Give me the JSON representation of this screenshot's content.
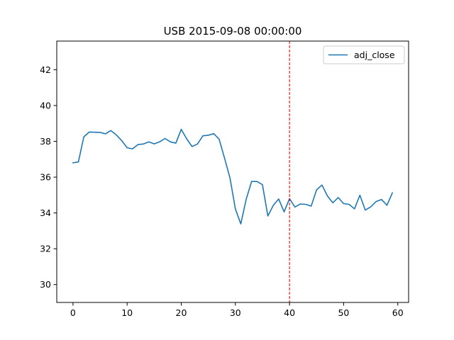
{
  "chart_data": {
    "type": "line",
    "title": "USB 2015-09-08 00:00:00",
    "xlabel": "",
    "ylabel": "",
    "xlim": [
      -3,
      62
    ],
    "ylim": [
      29.0,
      43.6
    ],
    "xticks": [
      0,
      10,
      20,
      30,
      40,
      50,
      60
    ],
    "yticks": [
      30,
      32,
      34,
      36,
      38,
      40,
      42
    ],
    "grid": false,
    "legend": {
      "position": "top-right"
    },
    "series": [
      {
        "name": "adj_close",
        "color": "#1f77b4",
        "x": [
          0,
          1,
          2,
          3,
          4,
          5,
          6,
          7,
          8,
          9,
          10,
          11,
          12,
          13,
          14,
          15,
          16,
          17,
          18,
          19,
          20,
          21,
          22,
          23,
          24,
          25,
          26,
          27,
          28,
          29,
          30,
          31,
          32,
          33,
          34,
          35,
          36,
          37,
          38,
          39,
          40,
          41,
          42,
          43,
          44,
          45,
          46,
          47,
          48,
          49,
          50,
          51,
          52,
          53,
          54,
          55,
          56,
          57,
          58,
          59
        ],
        "values": [
          36.8,
          36.85,
          38.25,
          38.52,
          38.51,
          38.5,
          38.42,
          38.6,
          38.36,
          38.04,
          37.64,
          37.58,
          37.82,
          37.85,
          37.97,
          37.86,
          37.97,
          38.16,
          37.97,
          37.9,
          38.67,
          38.14,
          37.71,
          37.85,
          38.31,
          38.34,
          38.43,
          38.12,
          37.06,
          35.96,
          34.22,
          33.39,
          34.77,
          35.76,
          35.76,
          35.58,
          33.83,
          34.42,
          34.78,
          34.06,
          34.8,
          34.33,
          34.5,
          34.48,
          34.38,
          35.29,
          35.56,
          34.95,
          34.57,
          34.86,
          34.52,
          34.48,
          34.23,
          34.99,
          34.16,
          34.34,
          34.64,
          34.75,
          34.43,
          35.12
        ]
      }
    ],
    "annotations": [
      {
        "type": "vline",
        "x": 40,
        "color": "#ff0000",
        "style": "dashed"
      }
    ]
  }
}
